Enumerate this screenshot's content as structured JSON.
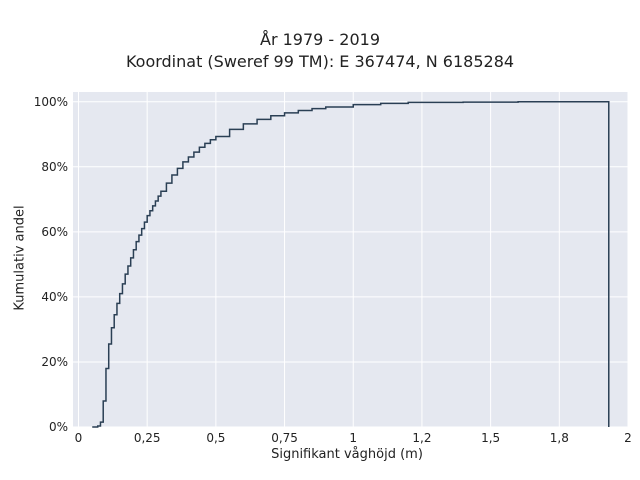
{
  "chart_data": {
    "type": "line",
    "title": "År 1979 - 2019",
    "subtitle": "Koordinat (Sweref 99 TM): E 367474, N 6185284",
    "xlabel": "Signifikant våghöjd (m)",
    "ylabel": "Kumulativ andel",
    "xlim": [
      -0.02,
      2
    ],
    "ylim": [
      0,
      1.03
    ],
    "x_ticks": [
      0,
      0.25,
      0.5,
      0.75,
      1,
      1.25,
      1.5,
      1.75,
      2
    ],
    "x_tick_labels": [
      "0",
      "0,25",
      "0,5",
      "0,75",
      "1",
      "1,2",
      "1,5",
      "1,8",
      "2"
    ],
    "y_ticks": [
      0,
      0.2,
      0.4,
      0.6,
      0.8,
      1.0
    ],
    "y_tick_labels": [
      "0%",
      "20%",
      "40%",
      "60%",
      "80%",
      "100%"
    ],
    "grid": true,
    "step": true,
    "colors": {
      "line": "#2a3f54",
      "plot_bg": "#e5e8f0",
      "grid": "#ffffff"
    },
    "series": [
      {
        "x": [
          0.05,
          0.07,
          0.08,
          0.09,
          0.1,
          0.11,
          0.12,
          0.13,
          0.14,
          0.15,
          0.16,
          0.17,
          0.18,
          0.19,
          0.2,
          0.21,
          0.22,
          0.23,
          0.24,
          0.25,
          0.26,
          0.27,
          0.28,
          0.29,
          0.3,
          0.32,
          0.34,
          0.36,
          0.38,
          0.4,
          0.42,
          0.44,
          0.46,
          0.48,
          0.5,
          0.55,
          0.6,
          0.65,
          0.7,
          0.75,
          0.8,
          0.85,
          0.9,
          1.0,
          1.1,
          1.2,
          1.4,
          1.6,
          1.93,
          1.93
        ],
        "y": [
          0.0,
          0.003,
          0.015,
          0.08,
          0.18,
          0.255,
          0.305,
          0.345,
          0.38,
          0.41,
          0.44,
          0.47,
          0.495,
          0.52,
          0.545,
          0.57,
          0.59,
          0.61,
          0.63,
          0.65,
          0.665,
          0.68,
          0.695,
          0.71,
          0.725,
          0.75,
          0.775,
          0.795,
          0.815,
          0.83,
          0.845,
          0.86,
          0.872,
          0.883,
          0.893,
          0.915,
          0.932,
          0.946,
          0.957,
          0.966,
          0.973,
          0.979,
          0.984,
          0.991,
          0.995,
          0.998,
          0.999,
          1.0,
          1.0,
          0.0
        ]
      }
    ]
  }
}
